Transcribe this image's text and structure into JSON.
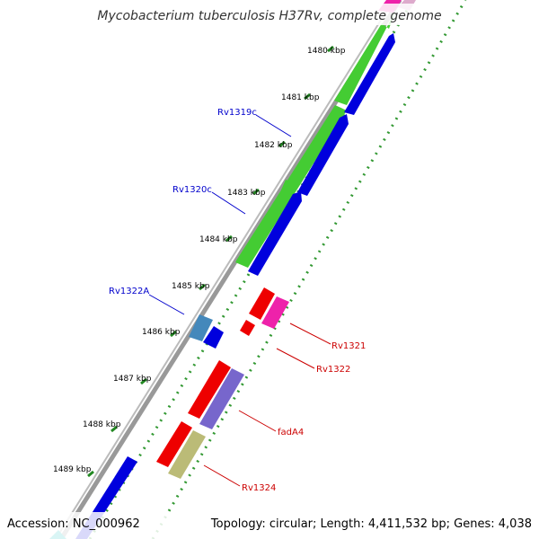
{
  "title": "Mycobacterium tuberculosis H37Rv, complete genome",
  "footer": {
    "accession": "Accession: NC_000962",
    "topology": "Topology: circular; Length: 4,411,532 bp; Genes: 4,038"
  },
  "ticks": [
    "1480 kbp",
    "1481 kbp",
    "1482 kbp",
    "1483 kbp",
    "1484 kbp",
    "1485 kbp",
    "1486 kbp",
    "1487 kbp",
    "1488 kbp",
    "1489 kbp"
  ],
  "gene_labels_left": [
    "Rv1319c",
    "Rv1320c",
    "Rv1322A"
  ],
  "gene_labels_right": [
    "Rv1321",
    "Rv1322",
    "fadA4",
    "Rv1324"
  ],
  "colors": {
    "green_gene": "#44cc33",
    "blue_gene": "#0000dd",
    "red_gene": "#ee0000",
    "magenta_gene": "#ee22aa",
    "steelblue_gene": "#4488bb",
    "purple_gene": "#7766cc",
    "olive_gene": "#bbbb77",
    "left_label": "#0000cc",
    "right_label": "#cc0000",
    "dots": "#228822"
  }
}
